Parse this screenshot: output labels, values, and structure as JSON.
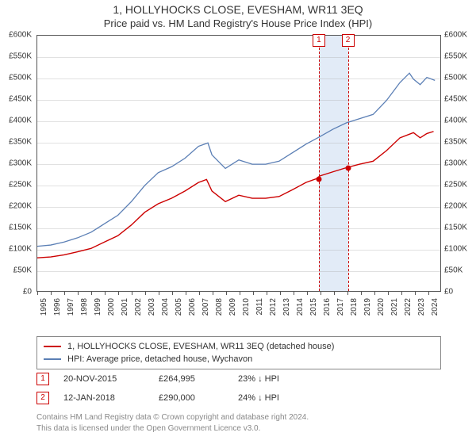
{
  "title": "1, HOLLYHOCKS CLOSE, EVESHAM, WR11 3EQ",
  "subtitle": "Price paid vs. HM Land Registry's House Price Index (HPI)",
  "chart": {
    "type": "line",
    "background_color": "#ffffff",
    "grid_color": "#aaaaaa",
    "axis_color": "#555555",
    "highlight_band_color": "#e2ebf7",
    "marker_line_color": "#cc0000",
    "title_fontsize": 14,
    "subtitle_fontsize": 13,
    "axis_label_fontsize": 10,
    "x_min": 1995,
    "x_max": 2025,
    "x_ticks": [
      1995,
      1996,
      1997,
      1998,
      1999,
      2000,
      2001,
      2002,
      2003,
      2004,
      2005,
      2006,
      2007,
      2008,
      2009,
      2010,
      2011,
      2012,
      2013,
      2014,
      2015,
      2016,
      2017,
      2018,
      2019,
      2020,
      2021,
      2022,
      2023,
      2024
    ],
    "y_min": 0,
    "y_max": 600000,
    "y_ticks": [
      0,
      50000,
      100000,
      150000,
      200000,
      250000,
      300000,
      350000,
      400000,
      450000,
      500000,
      550000,
      600000
    ],
    "y_tick_labels": [
      "£0",
      "£50K",
      "£100K",
      "£150K",
      "£200K",
      "£250K",
      "£300K",
      "£350K",
      "£400K",
      "£450K",
      "£500K",
      "£550K",
      "£600K"
    ],
    "highlight_band": {
      "x_start": 2015.88,
      "x_end": 2018.03
    },
    "series": [
      {
        "id": "price_paid",
        "label": "1, HOLLYHOCKS CLOSE, EVESHAM, WR11 3EQ (detached house)",
        "color": "#cc0000",
        "line_width": 1.4,
        "data": [
          [
            1995,
            78000
          ],
          [
            1996,
            80000
          ],
          [
            1997,
            85000
          ],
          [
            1998,
            92000
          ],
          [
            1999,
            100000
          ],
          [
            2000,
            115000
          ],
          [
            2001,
            130000
          ],
          [
            2002,
            155000
          ],
          [
            2003,
            185000
          ],
          [
            2004,
            205000
          ],
          [
            2005,
            218000
          ],
          [
            2006,
            235000
          ],
          [
            2007,
            255000
          ],
          [
            2007.6,
            262000
          ],
          [
            2008,
            235000
          ],
          [
            2009,
            210000
          ],
          [
            2010,
            225000
          ],
          [
            2011,
            218000
          ],
          [
            2012,
            218000
          ],
          [
            2013,
            222000
          ],
          [
            2014,
            238000
          ],
          [
            2015,
            255000
          ],
          [
            2015.88,
            264995
          ],
          [
            2016,
            270000
          ],
          [
            2017,
            280000
          ],
          [
            2018.03,
            290000
          ],
          [
            2019,
            298000
          ],
          [
            2020,
            305000
          ],
          [
            2021,
            330000
          ],
          [
            2022,
            360000
          ],
          [
            2023,
            372000
          ],
          [
            2023.5,
            360000
          ],
          [
            2024,
            370000
          ],
          [
            2024.5,
            375000
          ]
        ]
      },
      {
        "id": "hpi",
        "label": "HPI: Average price, detached house, Wychavon",
        "color": "#5b7fb5",
        "line_width": 1.3,
        "data": [
          [
            1995,
            105000
          ],
          [
            1996,
            108000
          ],
          [
            1997,
            115000
          ],
          [
            1998,
            125000
          ],
          [
            1999,
            138000
          ],
          [
            2000,
            158000
          ],
          [
            2001,
            178000
          ],
          [
            2002,
            210000
          ],
          [
            2003,
            248000
          ],
          [
            2004,
            278000
          ],
          [
            2005,
            292000
          ],
          [
            2006,
            312000
          ],
          [
            2007,
            340000
          ],
          [
            2007.7,
            348000
          ],
          [
            2008,
            320000
          ],
          [
            2009,
            288000
          ],
          [
            2010,
            308000
          ],
          [
            2011,
            298000
          ],
          [
            2012,
            298000
          ],
          [
            2013,
            305000
          ],
          [
            2014,
            325000
          ],
          [
            2015,
            345000
          ],
          [
            2016,
            362000
          ],
          [
            2017,
            380000
          ],
          [
            2018,
            395000
          ],
          [
            2019,
            405000
          ],
          [
            2020,
            415000
          ],
          [
            2021,
            448000
          ],
          [
            2022,
            490000
          ],
          [
            2022.7,
            512000
          ],
          [
            2023,
            498000
          ],
          [
            2023.5,
            485000
          ],
          [
            2024,
            502000
          ],
          [
            2024.6,
            495000
          ]
        ]
      }
    ],
    "sale_markers": [
      {
        "num": "1",
        "x": 2015.88,
        "y": 264995
      },
      {
        "num": "2",
        "x": 2018.03,
        "y": 290000
      }
    ]
  },
  "legend": {
    "border_color": "#888888",
    "fontsize": 11,
    "items": [
      {
        "color": "#cc0000",
        "label_path": "chart.series.0.label"
      },
      {
        "color": "#5b7fb5",
        "label_path": "chart.series.1.label"
      }
    ]
  },
  "sales": [
    {
      "num": "1",
      "date": "20-NOV-2015",
      "price": "£264,995",
      "diff": "23% ↓ HPI"
    },
    {
      "num": "2",
      "date": "12-JAN-2018",
      "price": "£290,000",
      "diff": "24% ↓ HPI"
    }
  ],
  "footer": {
    "line1": "Contains HM Land Registry data © Crown copyright and database right 2024.",
    "line2": "This data is licensed under the Open Government Licence v3.0."
  }
}
